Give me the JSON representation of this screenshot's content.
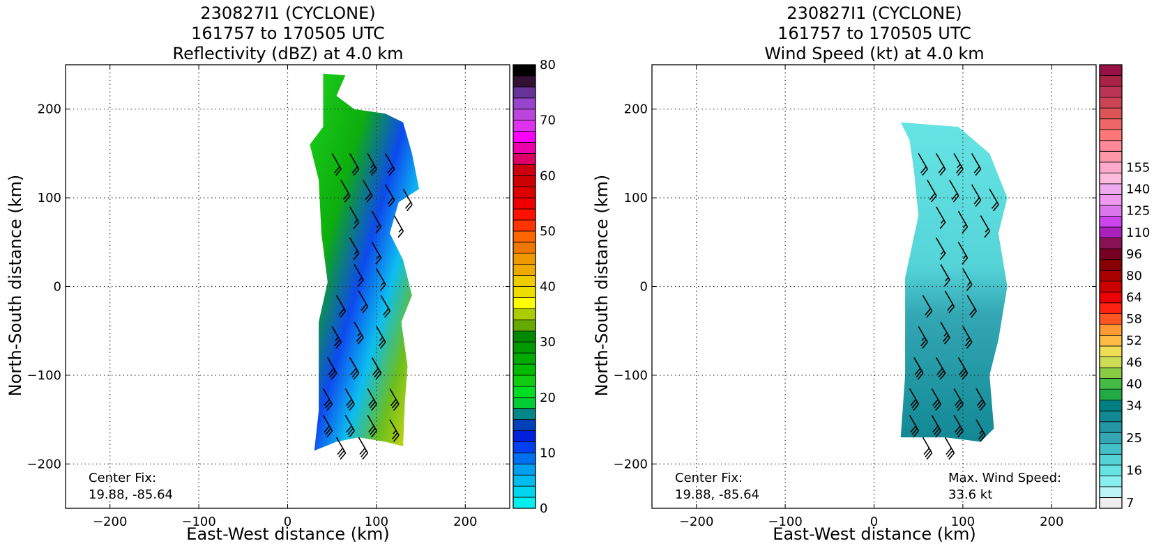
{
  "chart_data": [
    {
      "type": "heatmap",
      "title": [
        "230827I1 (CYCLONE)",
        "161757 to 170505 UTC",
        "Reflectivity (dBZ) at 4.0 km"
      ],
      "xlabel": "East-West distance (km)",
      "ylabel": "North-South distance (km)",
      "xlim": [
        -250,
        250
      ],
      "ylim": [
        -250,
        250
      ],
      "xticks": [
        -200,
        -100,
        0,
        100,
        200
      ],
      "yticks": [
        -200,
        -100,
        0,
        100,
        200
      ],
      "xtick_labels": [
        "−200",
        "−100",
        "0",
        "100",
        "200"
      ],
      "ytick_labels": [
        "−200",
        "−100",
        "0",
        "100",
        "200"
      ],
      "grid": true,
      "annotation": {
        "label": "Center Fix:",
        "value": "19.88, -85.64"
      },
      "colorbar": {
        "label_ticks": [
          "0",
          "10",
          "20",
          "30",
          "40",
          "50",
          "60",
          "70",
          "80"
        ],
        "tick_positions": [
          0,
          5,
          10,
          15,
          20,
          25,
          30,
          35,
          40
        ],
        "colors": [
          "#00eeee",
          "#00d4ee",
          "#00bbee",
          "#00a0ee",
          "#0070ee",
          "#0040ee",
          "#0020dd",
          "#0040bb",
          "#008888",
          "#00cc33",
          "#00dd22",
          "#11cc11",
          "#00bb00",
          "#00aa00",
          "#009900",
          "#008800",
          "#66aa00",
          "#aacc00",
          "#ffff00",
          "#eedd00",
          "#eecc00",
          "#eeaa00",
          "#ee9900",
          "#ee7700",
          "#ff6600",
          "#ff3300",
          "#ff1100",
          "#ee0000",
          "#dd0000",
          "#cc0000",
          "#cc0011",
          "#dd0066",
          "#ee00aa",
          "#ff00ff",
          "#dd33ee",
          "#bb44dd",
          "#9944cc",
          "#663399",
          "#331133",
          "#000000"
        ]
      },
      "echo_region": [
        [
          40,
          240
        ],
        [
          65,
          238
        ],
        [
          55,
          215
        ],
        [
          75,
          200
        ],
        [
          110,
          195
        ],
        [
          130,
          185
        ],
        [
          140,
          150
        ],
        [
          148,
          110
        ],
        [
          125,
          95
        ],
        [
          115,
          60
        ],
        [
          130,
          30
        ],
        [
          140,
          -10
        ],
        [
          128,
          -40
        ],
        [
          135,
          -90
        ],
        [
          132,
          -130
        ],
        [
          130,
          -180
        ],
        [
          110,
          -175
        ],
        [
          80,
          -170
        ],
        [
          55,
          -175
        ],
        [
          30,
          -185
        ],
        [
          35,
          -140
        ],
        [
          35,
          -110
        ],
        [
          35,
          -40
        ],
        [
          45,
          5
        ],
        [
          38,
          60
        ],
        [
          35,
          120
        ],
        [
          25,
          160
        ],
        [
          40,
          180
        ]
      ],
      "wind_barbs": [
        {
          "x": 50,
          "y": 150,
          "speed": 20
        },
        {
          "x": 70,
          "y": 150,
          "speed": 20
        },
        {
          "x": 90,
          "y": 150,
          "speed": 25
        },
        {
          "x": 110,
          "y": 150,
          "speed": 20
        },
        {
          "x": 60,
          "y": 120,
          "speed": 20
        },
        {
          "x": 85,
          "y": 120,
          "speed": 20
        },
        {
          "x": 110,
          "y": 115,
          "speed": 20
        },
        {
          "x": 130,
          "y": 110,
          "speed": 20
        },
        {
          "x": 70,
          "y": 90,
          "speed": 15
        },
        {
          "x": 95,
          "y": 85,
          "speed": 15
        },
        {
          "x": 120,
          "y": 80,
          "speed": 15
        },
        {
          "x": 70,
          "y": 55,
          "speed": 15
        },
        {
          "x": 95,
          "y": 50,
          "speed": 15
        },
        {
          "x": 75,
          "y": 25,
          "speed": 15
        },
        {
          "x": 100,
          "y": 20,
          "speed": 15
        },
        {
          "x": 55,
          "y": -10,
          "speed": 20
        },
        {
          "x": 80,
          "y": -5,
          "speed": 20
        },
        {
          "x": 105,
          "y": -10,
          "speed": 20
        },
        {
          "x": 50,
          "y": -45,
          "speed": 25
        },
        {
          "x": 75,
          "y": -40,
          "speed": 25
        },
        {
          "x": 100,
          "y": -45,
          "speed": 25
        },
        {
          "x": 45,
          "y": -80,
          "speed": 30
        },
        {
          "x": 70,
          "y": -80,
          "speed": 30
        },
        {
          "x": 95,
          "y": -80,
          "speed": 30
        },
        {
          "x": 40,
          "y": -115,
          "speed": 30
        },
        {
          "x": 65,
          "y": -115,
          "speed": 30
        },
        {
          "x": 90,
          "y": -115,
          "speed": 30
        },
        {
          "x": 115,
          "y": -115,
          "speed": 30
        },
        {
          "x": 40,
          "y": -145,
          "speed": 30
        },
        {
          "x": 65,
          "y": -145,
          "speed": 30
        },
        {
          "x": 90,
          "y": -145,
          "speed": 30
        },
        {
          "x": 115,
          "y": -150,
          "speed": 25
        },
        {
          "x": 55,
          "y": -170,
          "speed": 30
        },
        {
          "x": 80,
          "y": -170,
          "speed": 30
        }
      ]
    },
    {
      "type": "heatmap",
      "title": [
        "230827I1 (CYCLONE)",
        "161757 to 170505 UTC",
        "Wind Speed (kt) at 4.0 km"
      ],
      "xlabel": "East-West distance (km)",
      "ylabel": "North-South distance (km)",
      "xlim": [
        -250,
        250
      ],
      "ylim": [
        -250,
        250
      ],
      "xticks": [
        -200,
        -100,
        0,
        100,
        200
      ],
      "yticks": [
        -200,
        -100,
        0,
        100,
        200
      ],
      "xtick_labels": [
        "−200",
        "−100",
        "0",
        "100",
        "200"
      ],
      "ytick_labels": [
        "−200",
        "−100",
        "0",
        "100",
        "200"
      ],
      "grid": true,
      "annotation": {
        "label": "Center Fix:",
        "value": "19.88, -85.64"
      },
      "max_wind": {
        "label": "Max. Wind Speed:",
        "value": "33.6 kt"
      },
      "colorbar": {
        "label_ticks": [
          "7",
          "16",
          "25",
          "34",
          "40",
          "46",
          "52",
          "58",
          "64",
          "80",
          "96",
          "110",
          "125",
          "140",
          "155"
        ],
        "tick_positions": [
          0,
          3,
          6,
          9,
          11,
          13,
          15,
          17,
          19,
          21,
          23,
          25,
          27,
          29,
          31
        ],
        "colors": [
          "#eeeeee",
          "#bbf5f5",
          "#88eeee",
          "#66e4e4",
          "#55d4d8",
          "#44c0c8",
          "#33a8b4",
          "#2298a4",
          "#118894",
          "#008080",
          "#22aa44",
          "#44bb44",
          "#88cc44",
          "#ccdd55",
          "#eedd55",
          "#ffbb44",
          "#ff9933",
          "#ff5522",
          "#ff2211",
          "#ee0000",
          "#cc0000",
          "#aa0000",
          "#880000",
          "#770022",
          "#881155",
          "#aa22bb",
          "#cc44ee",
          "#dd77ee",
          "#ee99ee",
          "#eeaaee",
          "#ffbbdd",
          "#ffaacc",
          "#ff99aa",
          "#ff8899",
          "#ff7777",
          "#ee6666",
          "#dd5555",
          "#cc4455",
          "#bb3355",
          "#aa2244",
          "#991144"
        ]
      },
      "wind_region": [
        [
          30,
          185
        ],
        [
          95,
          180
        ],
        [
          130,
          150
        ],
        [
          150,
          100
        ],
        [
          140,
          60
        ],
        [
          150,
          0
        ],
        [
          140,
          -60
        ],
        [
          130,
          -100
        ],
        [
          135,
          -160
        ],
        [
          120,
          -175
        ],
        [
          80,
          -170
        ],
        [
          30,
          -170
        ],
        [
          35,
          -100
        ],
        [
          35,
          10
        ],
        [
          50,
          80
        ],
        [
          45,
          130
        ],
        [
          40,
          165
        ]
      ],
      "wind_barbs": [
        {
          "x": 50,
          "y": 150,
          "speed": 20
        },
        {
          "x": 70,
          "y": 150,
          "speed": 20
        },
        {
          "x": 90,
          "y": 150,
          "speed": 25
        },
        {
          "x": 110,
          "y": 150,
          "speed": 20
        },
        {
          "x": 60,
          "y": 120,
          "speed": 20
        },
        {
          "x": 85,
          "y": 120,
          "speed": 20
        },
        {
          "x": 110,
          "y": 115,
          "speed": 20
        },
        {
          "x": 130,
          "y": 110,
          "speed": 20
        },
        {
          "x": 70,
          "y": 90,
          "speed": 15
        },
        {
          "x": 95,
          "y": 85,
          "speed": 15
        },
        {
          "x": 120,
          "y": 80,
          "speed": 15
        },
        {
          "x": 70,
          "y": 55,
          "speed": 15
        },
        {
          "x": 95,
          "y": 50,
          "speed": 15
        },
        {
          "x": 75,
          "y": 25,
          "speed": 15
        },
        {
          "x": 100,
          "y": 20,
          "speed": 15
        },
        {
          "x": 55,
          "y": -10,
          "speed": 20
        },
        {
          "x": 80,
          "y": -5,
          "speed": 20
        },
        {
          "x": 105,
          "y": -10,
          "speed": 20
        },
        {
          "x": 50,
          "y": -45,
          "speed": 25
        },
        {
          "x": 75,
          "y": -40,
          "speed": 25
        },
        {
          "x": 100,
          "y": -45,
          "speed": 25
        },
        {
          "x": 45,
          "y": -80,
          "speed": 30
        },
        {
          "x": 70,
          "y": -80,
          "speed": 30
        },
        {
          "x": 95,
          "y": -80,
          "speed": 30
        },
        {
          "x": 40,
          "y": -115,
          "speed": 30
        },
        {
          "x": 65,
          "y": -115,
          "speed": 30
        },
        {
          "x": 90,
          "y": -115,
          "speed": 30
        },
        {
          "x": 115,
          "y": -115,
          "speed": 30
        },
        {
          "x": 40,
          "y": -145,
          "speed": 30
        },
        {
          "x": 65,
          "y": -145,
          "speed": 30
        },
        {
          "x": 90,
          "y": -145,
          "speed": 30
        },
        {
          "x": 115,
          "y": -150,
          "speed": 25
        },
        {
          "x": 55,
          "y": -170,
          "speed": 30
        },
        {
          "x": 80,
          "y": -170,
          "speed": 30
        }
      ]
    }
  ]
}
